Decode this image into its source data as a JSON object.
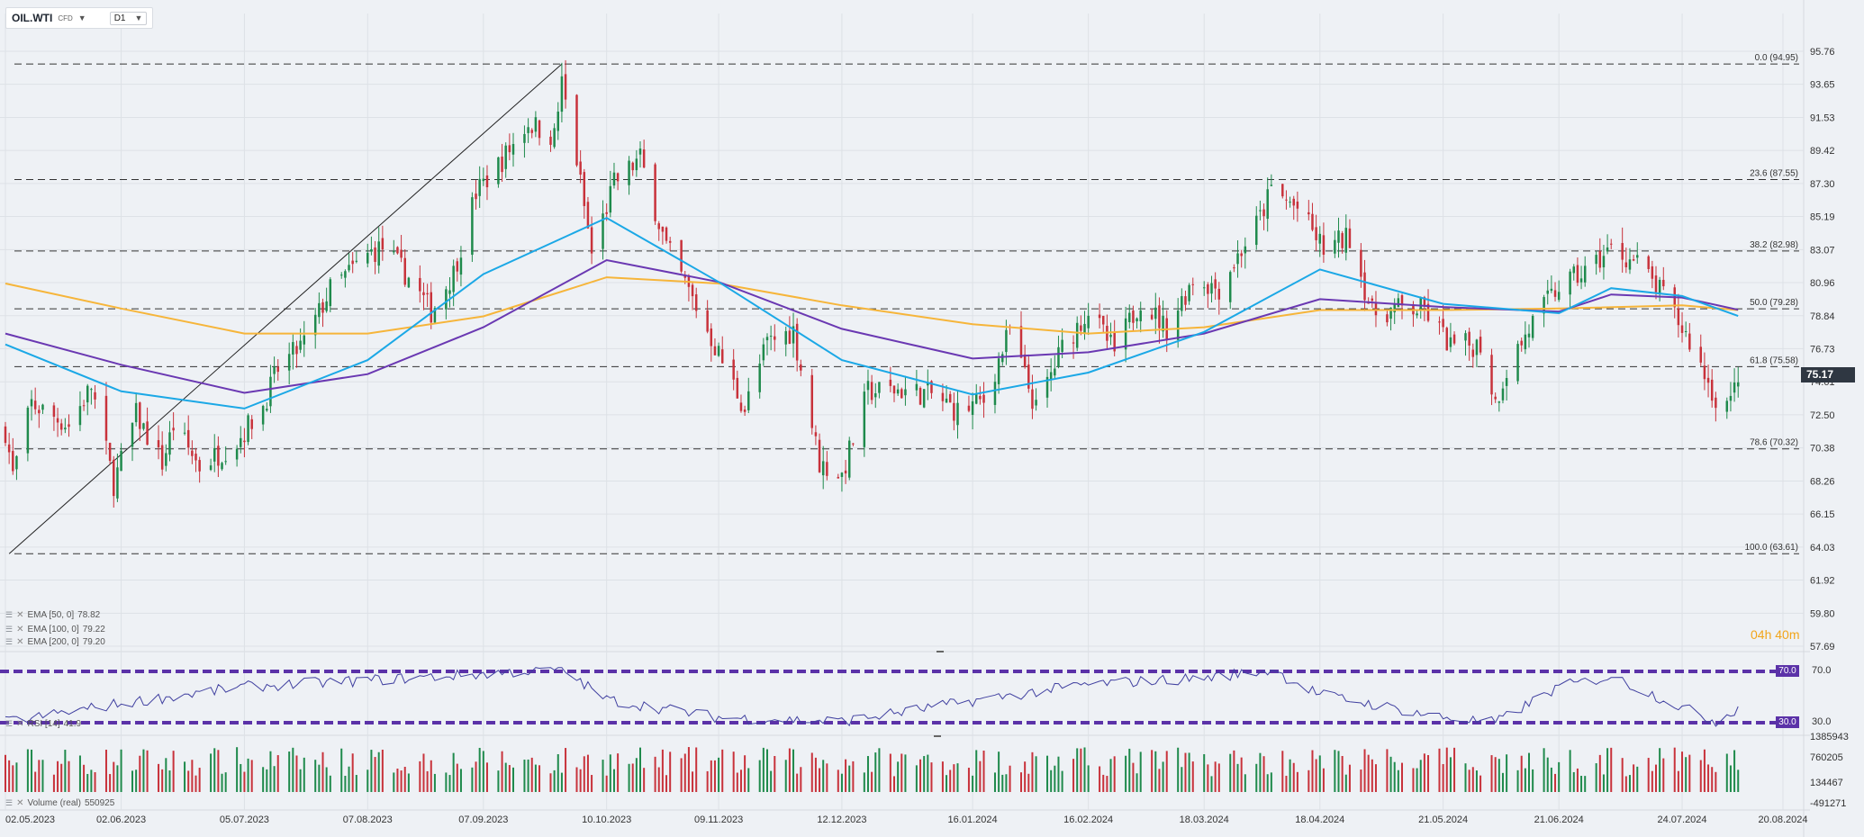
{
  "header": {
    "symbol": "OIL.WTI",
    "type": "CFD",
    "timeframe": "D1",
    "caret": "▼"
  },
  "indicators": {
    "ema50": {
      "label": "EMA [50, 0]",
      "value": "78.82",
      "color": "#1ba8e6"
    },
    "ema100": {
      "label": "EMA [100, 0]",
      "value": "79.22",
      "color": "#6a38b2"
    },
    "ema200": {
      "label": "EMA [200, 0]",
      "value": "79.20",
      "color": "#f6b53a"
    },
    "rsi": {
      "label": "RSI [14]",
      "value": "41.9",
      "upper": "70.0",
      "lower": "30.0",
      "color": "#5b32a8"
    },
    "volume": {
      "label": "Volume (real)",
      "value": "550925"
    }
  },
  "timer": {
    "h": "04",
    "hu": "h",
    "m": "40",
    "mu": "m"
  },
  "last_price": "75.17",
  "chart_data": {
    "type": "candlestick",
    "symbol": "OIL.WTI",
    "interval": "D1",
    "x_tick_labels": [
      "02.05.2023",
      "02.06.2023",
      "05.07.2023",
      "07.08.2023",
      "07.09.2023",
      "10.10.2023",
      "09.11.2023",
      "12.12.2023",
      "16.01.2024",
      "16.02.2024",
      "18.03.2024",
      "18.04.2024",
      "21.05.2024",
      "21.06.2024",
      "24.07.2024",
      "20.08.2024"
    ],
    "y_tick_labels": [
      "95.76",
      "93.65",
      "91.53",
      "89.42",
      "87.30",
      "85.19",
      "83.07",
      "80.96",
      "78.84",
      "76.73",
      "74.61",
      "72.50",
      "70.38",
      "68.26",
      "66.15",
      "64.03",
      "61.92",
      "59.80",
      "57.69"
    ],
    "ylim": [
      57.69,
      95.76
    ],
    "fibonacci": [
      {
        "label": "0.0 (94.95)",
        "value": 94.95
      },
      {
        "label": "23.6 (87.55)",
        "value": 87.55
      },
      {
        "label": "38.2 (82.98)",
        "value": 82.98
      },
      {
        "label": "50.0 (79.28)",
        "value": 79.28
      },
      {
        "label": "61.8 (75.58)",
        "value": 75.58
      },
      {
        "label": "78.6 (70.32)",
        "value": 70.32
      },
      {
        "label": "100.0 (63.61)",
        "value": 63.61
      }
    ],
    "trendline": {
      "from": {
        "date": "03.05.2023",
        "value": 63.61
      },
      "to": {
        "date": "28.09.2023",
        "value": 94.95
      }
    },
    "close_path": [
      [
        "02.05.2023",
        71.5
      ],
      [
        "04.05.2023",
        68.6
      ],
      [
        "09.05.2023",
        73.2
      ],
      [
        "19.05.2023",
        71.8
      ],
      [
        "25.05.2023",
        74.3
      ],
      [
        "31.05.2023",
        68.1
      ],
      [
        "06.06.2023",
        72.5
      ],
      [
        "13.06.2023",
        69.4
      ],
      [
        "16.06.2023",
        71.8
      ],
      [
        "23.06.2023",
        69.2
      ],
      [
        "03.07.2023",
        70.8
      ],
      [
        "10.07.2023",
        73.1
      ],
      [
        "14.07.2023",
        75.4
      ],
      [
        "21.07.2023",
        77.1
      ],
      [
        "28.07.2023",
        80.5
      ],
      [
        "08.08.2023",
        82.9
      ],
      [
        "11.08.2023",
        83.2
      ],
      [
        "18.08.2023",
        81.3
      ],
      [
        "24.08.2023",
        79.1
      ],
      [
        "30.08.2023",
        81.6
      ],
      [
        "05.09.2023",
        86.7
      ],
      [
        "12.09.2023",
        88.8
      ],
      [
        "19.09.2023",
        91.2
      ],
      [
        "26.09.2023",
        90.3
      ],
      [
        "28.09.2023",
        93.7
      ],
      [
        "02.10.2023",
        88.8
      ],
      [
        "06.10.2023",
        82.8
      ],
      [
        "12.10.2023",
        87.3
      ],
      [
        "19.10.2023",
        88.9
      ],
      [
        "26.10.2023",
        83.2
      ],
      [
        "01.11.2023",
        80.4
      ],
      [
        "07.11.2023",
        77.4
      ],
      [
        "16.11.2023",
        72.9
      ],
      [
        "22.11.2023",
        77.1
      ],
      [
        "29.11.2023",
        77.9
      ],
      [
        "06.12.2023",
        69.4
      ],
      [
        "12.12.2023",
        68.6
      ],
      [
        "19.12.2023",
        74.0
      ],
      [
        "27.12.2023",
        74.1
      ],
      [
        "05.01.2024",
        73.8
      ],
      [
        "12.01.2024",
        72.7
      ],
      [
        "19.01.2024",
        73.4
      ],
      [
        "26.01.2024",
        77.9
      ],
      [
        "02.02.2024",
        72.8
      ],
      [
        "09.02.2024",
        76.8
      ],
      [
        "16.02.2024",
        79.2
      ],
      [
        "23.02.2024",
        76.5
      ],
      [
        "01.03.2024",
        79.9
      ],
      [
        "08.03.2024",
        78.0
      ],
      [
        "15.03.2024",
        81.2
      ],
      [
        "22.03.2024",
        80.6
      ],
      [
        "02.04.2024",
        85.1
      ],
      [
        "05.04.2024",
        86.9
      ],
      [
        "12.04.2024",
        85.7
      ],
      [
        "19.04.2024",
        83.1
      ],
      [
        "26.04.2024",
        83.9
      ],
      [
        "02.05.2024",
        79.0
      ],
      [
        "09.05.2024",
        79.3
      ],
      [
        "16.05.2024",
        79.2
      ],
      [
        "23.05.2024",
        76.9
      ],
      [
        "31.05.2024",
        77.0
      ],
      [
        "04.06.2024",
        73.3
      ],
      [
        "07.06.2024",
        75.4
      ],
      [
        "14.06.2024",
        78.4
      ],
      [
        "21.06.2024",
        80.7
      ],
      [
        "28.06.2024",
        81.6
      ],
      [
        "05.07.2024",
        83.1
      ],
      [
        "12.07.2024",
        82.2
      ],
      [
        "19.07.2024",
        80.1
      ],
      [
        "26.07.2024",
        77.2
      ],
      [
        "02.08.2024",
        73.5
      ],
      [
        "06.08.2024",
        73.2
      ],
      [
        "08.08.2024",
        75.17
      ]
    ],
    "ema50_path": [
      [
        "02.05.2023",
        77.0
      ],
      [
        "02.06.2023",
        74.0
      ],
      [
        "05.07.2023",
        72.9
      ],
      [
        "07.08.2023",
        76.0
      ],
      [
        "07.09.2023",
        81.5
      ],
      [
        "10.10.2023",
        85.1
      ],
      [
        "09.11.2023",
        81.0
      ],
      [
        "12.12.2023",
        76.0
      ],
      [
        "16.01.2024",
        73.8
      ],
      [
        "16.02.2024",
        75.2
      ],
      [
        "18.03.2024",
        77.8
      ],
      [
        "18.04.2024",
        81.8
      ],
      [
        "21.05.2024",
        79.6
      ],
      [
        "21.06.2024",
        79.0
      ],
      [
        "05.07.2024",
        80.6
      ],
      [
        "24.07.2024",
        80.1
      ],
      [
        "08.08.2024",
        78.82
      ]
    ],
    "ema100_path": [
      [
        "02.05.2023",
        77.7
      ],
      [
        "02.06.2023",
        75.7
      ],
      [
        "05.07.2023",
        73.9
      ],
      [
        "07.08.2023",
        75.1
      ],
      [
        "07.09.2023",
        78.1
      ],
      [
        "10.10.2023",
        82.4
      ],
      [
        "09.11.2023",
        81.0
      ],
      [
        "12.12.2023",
        78.0
      ],
      [
        "16.01.2024",
        76.1
      ],
      [
        "16.02.2024",
        76.5
      ],
      [
        "18.03.2024",
        77.7
      ],
      [
        "18.04.2024",
        79.9
      ],
      [
        "21.05.2024",
        79.4
      ],
      [
        "21.06.2024",
        79.1
      ],
      [
        "05.07.2024",
        80.2
      ],
      [
        "24.07.2024",
        80.0
      ],
      [
        "08.08.2024",
        79.22
      ]
    ],
    "ema200_path": [
      [
        "02.05.2023",
        80.9
      ],
      [
        "02.06.2023",
        79.3
      ],
      [
        "05.07.2023",
        77.7
      ],
      [
        "07.08.2023",
        77.7
      ],
      [
        "07.09.2023",
        78.8
      ],
      [
        "10.10.2023",
        81.3
      ],
      [
        "09.11.2023",
        80.9
      ],
      [
        "12.12.2023",
        79.5
      ],
      [
        "16.01.2024",
        78.3
      ],
      [
        "16.02.2024",
        77.7
      ],
      [
        "18.03.2024",
        78.1
      ],
      [
        "18.04.2024",
        79.2
      ],
      [
        "21.05.2024",
        79.2
      ],
      [
        "21.06.2024",
        79.3
      ],
      [
        "24.07.2024",
        79.5
      ],
      [
        "08.08.2024",
        79.2
      ]
    ],
    "rsi_ylim": [
      30,
      70
    ],
    "rsi_path": [
      [
        "02.05.2023",
        30.5
      ],
      [
        "02.06.2023",
        45
      ],
      [
        "05.07.2023",
        58
      ],
      [
        "07.08.2023",
        63
      ],
      [
        "07.09.2023",
        68
      ],
      [
        "28.09.2023",
        72
      ],
      [
        "10.10.2023",
        48
      ],
      [
        "09.11.2023",
        34
      ],
      [
        "12.12.2023",
        31
      ],
      [
        "16.01.2024",
        47
      ],
      [
        "16.02.2024",
        60
      ],
      [
        "18.03.2024",
        65
      ],
      [
        "05.04.2024",
        71
      ],
      [
        "18.04.2024",
        52
      ],
      [
        "21.05.2024",
        34
      ],
      [
        "04.06.2024",
        30
      ],
      [
        "21.06.2024",
        58
      ],
      [
        "05.07.2024",
        66
      ],
      [
        "24.07.2024",
        42
      ],
      [
        "02.08.2024",
        31
      ],
      [
        "08.08.2024",
        41.9
      ]
    ],
    "volume_y_tick_labels": [
      "1385943",
      "760205",
      "134467",
      "-491271"
    ]
  }
}
